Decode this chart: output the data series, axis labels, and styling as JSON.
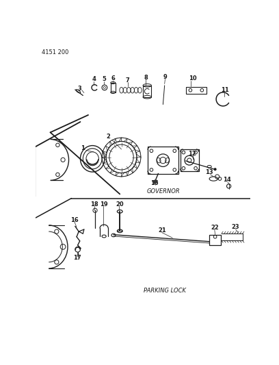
{
  "title_ref": "4151 200",
  "label_governor": "GOVERNOR",
  "label_parking": "PARKING LOCK",
  "bg_color": "#ffffff",
  "lc": "#1a1a1a",
  "fig_width": 4.08,
  "fig_height": 5.33,
  "dpi": 100
}
